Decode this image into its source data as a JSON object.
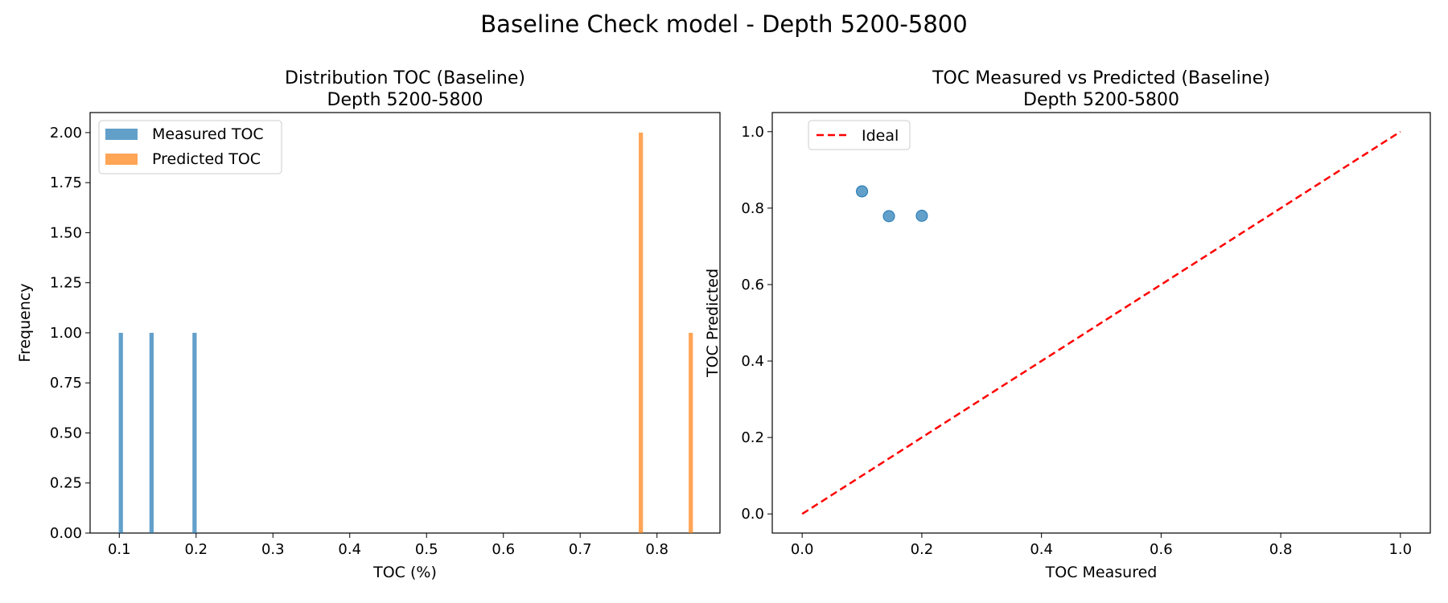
{
  "suptitle": "Baseline Check model - Depth 5200-5800",
  "chart_data": [
    {
      "type": "bar",
      "title_lines": [
        "Distribution TOC (Baseline)",
        "Depth 5200-5800"
      ],
      "xlabel": "TOC (%)",
      "ylabel": "Frequency",
      "xlim": [
        0.062,
        0.882
      ],
      "ylim": [
        0,
        2.1
      ],
      "xticks": [
        0.1,
        0.2,
        0.3,
        0.4,
        0.5,
        0.6,
        0.7,
        0.8
      ],
      "xtick_labels": [
        "0.1",
        "0.2",
        "0.3",
        "0.4",
        "0.5",
        "0.6",
        "0.7",
        "0.8"
      ],
      "yticks": [
        0,
        0.25,
        0.5,
        0.75,
        1.0,
        1.25,
        1.5,
        1.75,
        2.0
      ],
      "ytick_labels": [
        "0.00",
        "0.25",
        "0.50",
        "0.75",
        "1.00",
        "1.25",
        "1.50",
        "1.75",
        "2.00"
      ],
      "grid": false,
      "legend_position": "top-left",
      "series": [
        {
          "name": "Measured TOC",
          "color": "#1f77b4",
          "bins": [
            {
              "x": 0.102,
              "count": 1
            },
            {
              "x": 0.142,
              "count": 1
            },
            {
              "x": 0.198,
              "count": 1
            }
          ]
        },
        {
          "name": "Predicted TOC",
          "color": "#ff7f0e",
          "bins": [
            {
              "x": 0.779,
              "count": 2
            },
            {
              "x": 0.844,
              "count": 1
            }
          ]
        }
      ]
    },
    {
      "type": "scatter",
      "title_lines": [
        "TOC Measured vs Predicted (Baseline)",
        "Depth 5200-5800"
      ],
      "xlabel": "TOC Measured",
      "ylabel": "TOC Predicted",
      "xlim": [
        -0.05,
        1.05
      ],
      "ylim": [
        -0.05,
        1.05
      ],
      "xticks": [
        0,
        0.2,
        0.4,
        0.6,
        0.8,
        1.0
      ],
      "xtick_labels": [
        "0.0",
        "0.2",
        "0.4",
        "0.6",
        "0.8",
        "1.0"
      ],
      "yticks": [
        0,
        0.2,
        0.4,
        0.6,
        0.8,
        1.0
      ],
      "ytick_labels": [
        "0.0",
        "0.2",
        "0.4",
        "0.6",
        "0.8",
        "1.0"
      ],
      "grid": false,
      "legend_position": "top-left",
      "points": [
        {
          "x": 0.1,
          "y": 0.844
        },
        {
          "x": 0.145,
          "y": 0.779
        },
        {
          "x": 0.2,
          "y": 0.78
        }
      ],
      "point_color": "#1f77b4",
      "ideal_line": {
        "name": "Ideal",
        "color": "#ff0000",
        "x": [
          0,
          1
        ],
        "y": [
          0,
          1
        ]
      }
    }
  ]
}
